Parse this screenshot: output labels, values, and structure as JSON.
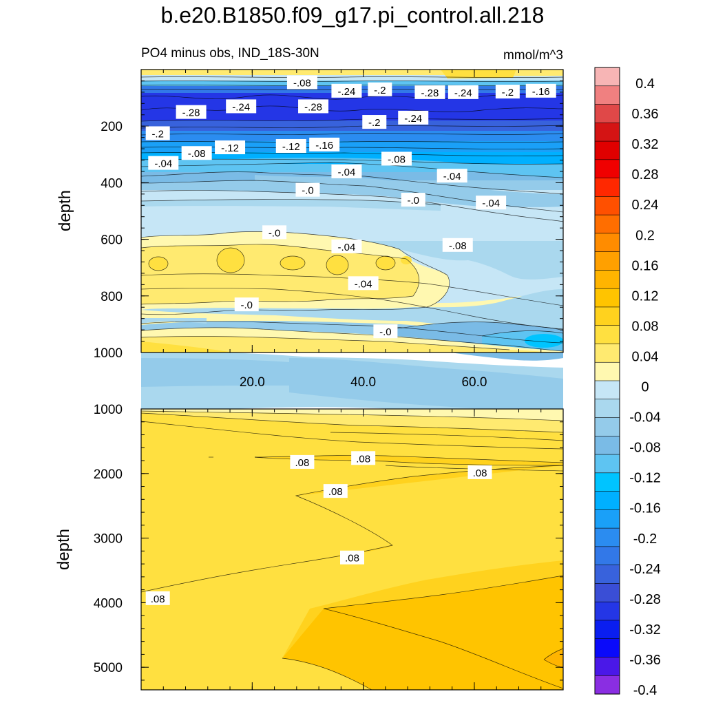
{
  "title": "b.e20.B1850.f09_g17.pi_control.all.218",
  "chart_data": {
    "type": "contour",
    "title": "b.e20.B1850.f09_g17.pi_control.all.218",
    "subtitle_left": "PO4 minus obs, IND_18S-30N",
    "subtitle_right": "mmol/m^3",
    "colorbar": {
      "levels": [
        -0.4,
        -0.36,
        -0.32,
        -0.28,
        -0.24,
        -0.2,
        -0.16,
        -0.12,
        -0.08,
        -0.04,
        0,
        0.04,
        0.08,
        0.12,
        0.16,
        0.2,
        0.24,
        0.28,
        0.32,
        0.36,
        0.4
      ],
      "tick_labels": [
        "0.4",
        "0.36",
        "0.32",
        "0.28",
        "0.24",
        "0.2",
        "0.16",
        "0.12",
        "0.08",
        "0.04",
        "0",
        "-0.04",
        "-0.08",
        "-0.12",
        "-0.16",
        "-0.2",
        "-0.24",
        "-0.28",
        "-0.32",
        "-0.36",
        "-0.4"
      ],
      "colors_top_to_bottom": [
        "#f7b5b5",
        "#f08080",
        "#e04848",
        "#d41414",
        "#e00000",
        "#f00000",
        "#ff2800",
        "#ff5000",
        "#ff6e00",
        "#ff8c00",
        "#ffa000",
        "#ffb400",
        "#ffc400",
        "#ffd21e",
        "#ffe040",
        "#ffea70",
        "#fff8b0",
        "#c6e6f6",
        "#aad8ee",
        "#94cbea",
        "#7abbe6",
        "#5ec4f2",
        "#00c4ff",
        "#00b0ff",
        "#1aa0f8",
        "#2b8cf0",
        "#3278e8",
        "#3862dc",
        "#3a4ed6",
        "#2436e6",
        "#0a1ef0",
        "#0a0afa",
        "#4a18e8",
        "#8a2ee2"
      ]
    },
    "panels": [
      {
        "name": "upper",
        "xlim": [
          0,
          76
        ],
        "ylim": [
          0,
          1000
        ],
        "y_ticks": [
          200,
          400,
          600,
          800,
          1000
        ],
        "x_ticks": [
          20.0,
          40.0,
          60.0
        ],
        "x_tick_labels": [
          "20.0",
          "40.0",
          "60.0"
        ],
        "ylabel": "depth",
        "contour_labels": [
          {
            "text": "-.08",
            "x": 29,
            "y": 45
          },
          {
            "text": "-.24",
            "x": 37,
            "y": 75
          },
          {
            "text": "-.2",
            "x": 43,
            "y": 70
          },
          {
            "text": "-.28",
            "x": 52,
            "y": 80
          },
          {
            "text": "-.24",
            "x": 58,
            "y": 80
          },
          {
            "text": "-.2",
            "x": 66,
            "y": 78
          },
          {
            "text": "-.16",
            "x": 72,
            "y": 75
          },
          {
            "text": "-.28",
            "x": 9,
            "y": 150
          },
          {
            "text": "-.24",
            "x": 18,
            "y": 130
          },
          {
            "text": "-.28",
            "x": 31,
            "y": 130
          },
          {
            "text": "-.2",
            "x": 42,
            "y": 185
          },
          {
            "text": "-.24",
            "x": 49,
            "y": 170
          },
          {
            "text": "-.2",
            "x": 3,
            "y": 225
          },
          {
            "text": "-.08",
            "x": 10,
            "y": 295
          },
          {
            "text": "-.12",
            "x": 16,
            "y": 275
          },
          {
            "text": "-.12",
            "x": 27,
            "y": 270
          },
          {
            "text": "-.16",
            "x": 33,
            "y": 265
          },
          {
            "text": "-.04",
            "x": 4,
            "y": 330
          },
          {
            "text": "-.08",
            "x": 46,
            "y": 315
          },
          {
            "text": "-.04",
            "x": 37,
            "y": 360
          },
          {
            "text": "-.04",
            "x": 56,
            "y": 375
          },
          {
            "text": "-.0",
            "x": 30,
            "y": 425
          },
          {
            "text": "-.0",
            "x": 49,
            "y": 460
          },
          {
            "text": "-.04",
            "x": 63,
            "y": 470
          },
          {
            "text": "-.0",
            "x": 24,
            "y": 575
          },
          {
            "text": "-.04",
            "x": 37,
            "y": 625
          },
          {
            "text": "-.08",
            "x": 57,
            "y": 620
          },
          {
            "text": "-.04",
            "x": 40,
            "y": 755
          },
          {
            "text": "-.0",
            "x": 19,
            "y": 830
          },
          {
            "text": "-.0",
            "x": 44,
            "y": 925
          }
        ]
      },
      {
        "name": "lower",
        "xlim": [
          0,
          76
        ],
        "ylim": [
          1000,
          5350
        ],
        "y_ticks": [
          1000,
          2000,
          3000,
          4000,
          5000
        ],
        "ylabel": "depth",
        "contour_labels": [
          {
            "text": ".08",
            "x": 29,
            "y": 1820
          },
          {
            "text": ".08",
            "x": 40,
            "y": 1760
          },
          {
            "text": ".08",
            "x": 61,
            "y": 1980
          },
          {
            "text": ".08",
            "x": 35,
            "y": 2270
          },
          {
            "text": ".08",
            "x": 38,
            "y": 3300
          },
          {
            "text": ".08",
            "x": 3,
            "y": 3930
          }
        ]
      }
    ]
  }
}
